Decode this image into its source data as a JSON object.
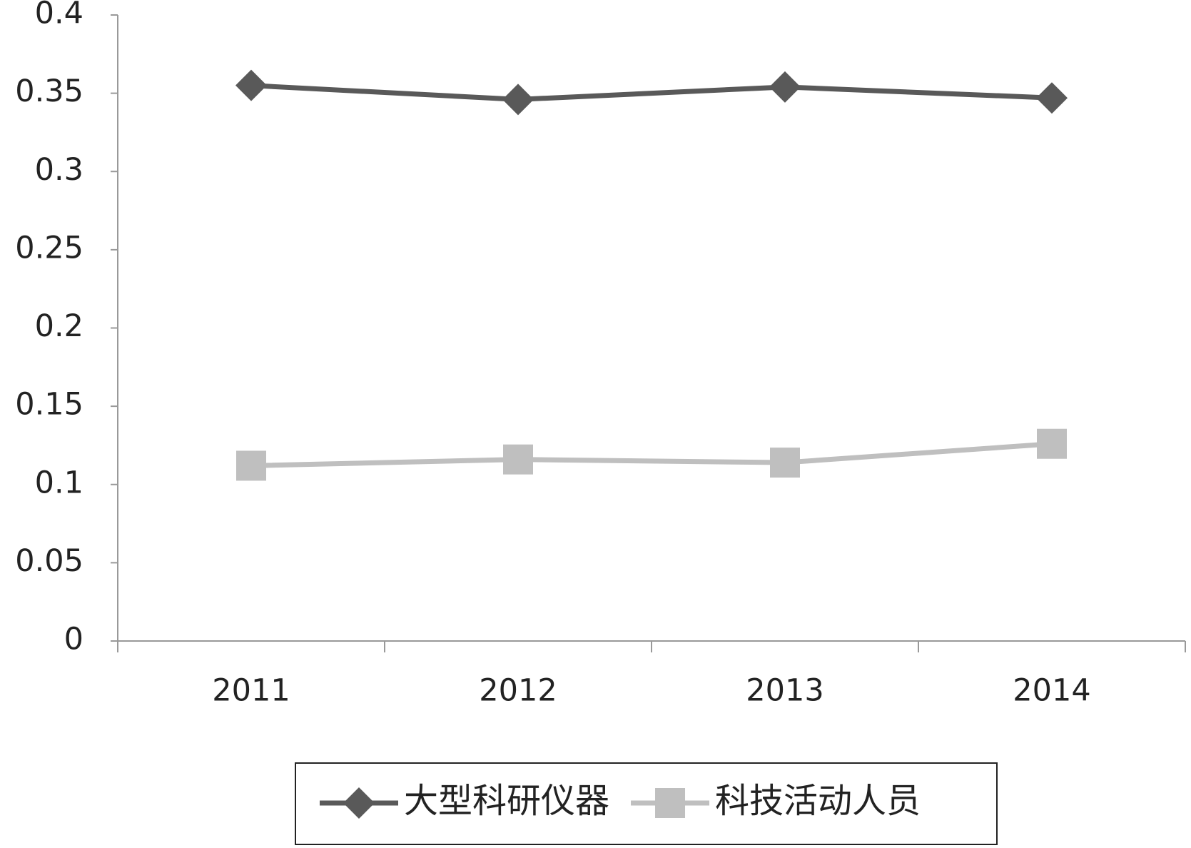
{
  "chart_data": {
    "type": "line",
    "categories": [
      "2011",
      "2012",
      "2013",
      "2014"
    ],
    "series": [
      {
        "name": "大型科研仪器",
        "color": "#595959",
        "marker": "diamond",
        "values": [
          0.355,
          0.346,
          0.354,
          0.347
        ]
      },
      {
        "name": "科技活动人员",
        "color": "#bfbfbf",
        "marker": "square",
        "values": [
          0.112,
          0.116,
          0.114,
          0.126
        ]
      }
    ],
    "ylim": [
      0,
      0.4
    ],
    "yticks": [
      0,
      0.05,
      0.1,
      0.15,
      0.2,
      0.25,
      0.3,
      0.35,
      0.4
    ],
    "grid": false,
    "legend": "bottom"
  }
}
